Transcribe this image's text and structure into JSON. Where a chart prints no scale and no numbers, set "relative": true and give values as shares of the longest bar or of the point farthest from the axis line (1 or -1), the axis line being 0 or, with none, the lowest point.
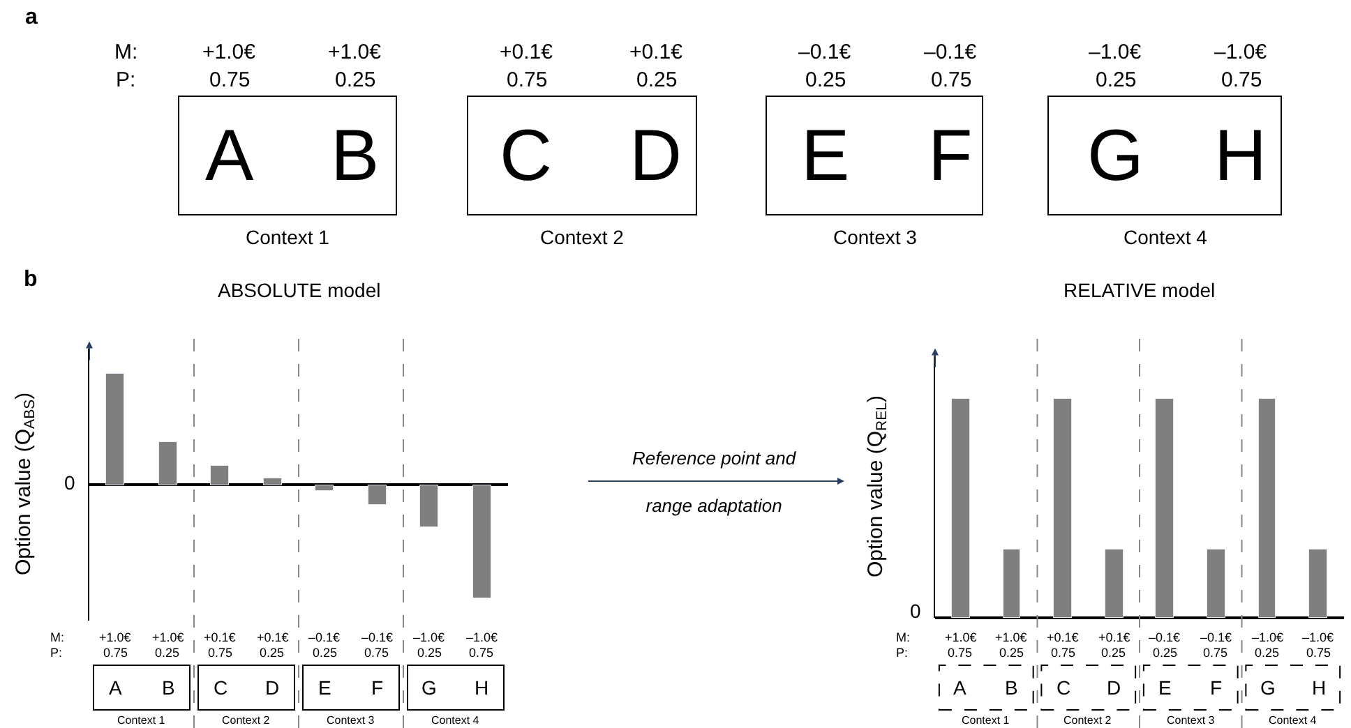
{
  "chart_data": [
    {
      "type": "other",
      "title": "a",
      "categories": [
        "A",
        "B",
        "C",
        "D",
        "E",
        "F",
        "G",
        "H"
      ],
      "annotations": [
        "M:",
        "P:",
        "+1.0€",
        "+1.0€",
        "+0.1€",
        "+0.1€",
        "–0.1€",
        "–0.1€",
        "–1.0€",
        "–1.0€",
        "0.75",
        "0.25",
        "0.75",
        "0.25",
        "0.25",
        "0.75",
        "0.25",
        "0.75",
        "Context 1",
        "Context 2",
        "Context 3",
        "Context 4"
      ]
    },
    {
      "type": "bar",
      "relative": true,
      "title": "ABSOLUTE model",
      "ylabel": "Option value (Q$_{ABS}$)",
      "categories": [
        "A",
        "B",
        "C",
        "D",
        "E",
        "F",
        "G",
        "H"
      ],
      "color": "#7f7f7f",
      "values": [
        0.98,
        0.37,
        0.17,
        0.05,
        -0.05,
        -0.18,
        -0.38,
        -1.0
      ],
      "annotations": [
        "M:",
        "P:",
        "+1.0€",
        "+1.0€",
        "+0.1€",
        "+0.1€",
        "–0.1€",
        "–0.1€",
        "–1.0€",
        "–1.0€",
        "0.75",
        "0.25",
        "0.75",
        "0.25",
        "0.25",
        "0.75",
        "0.25",
        "0.75",
        "Context 1",
        "Context 2",
        "Context 3",
        "Context 4",
        "0",
        "b",
        "Reference point and\nrange adaptation"
      ]
    },
    {
      "type": "bar",
      "relative": true,
      "title": "RELATIVE model",
      "ylabel": "Option value (Q$_{REL}$)",
      "categories": [
        "A",
        "B",
        "C",
        "D",
        "E",
        "F",
        "G",
        "H"
      ],
      "color": "#7f7f7f",
      "values": [
        1.0,
        0.31,
        1.0,
        0.31,
        1.0,
        0.31,
        1.0,
        0.31
      ],
      "annotations": [
        "M:",
        "P:",
        "+1.0€",
        "+1.0€",
        "+0.1€",
        "+0.1€",
        "–0.1€",
        "–0.1€",
        "–1.0€",
        "–1.0€",
        "0.75",
        "0.25",
        "0.75",
        "0.25",
        "0.25",
        "0.75",
        "0.25",
        "0.75",
        "Context 1",
        "Context 2",
        "Context 3",
        "Context 4",
        "0"
      ]
    }
  ]
}
